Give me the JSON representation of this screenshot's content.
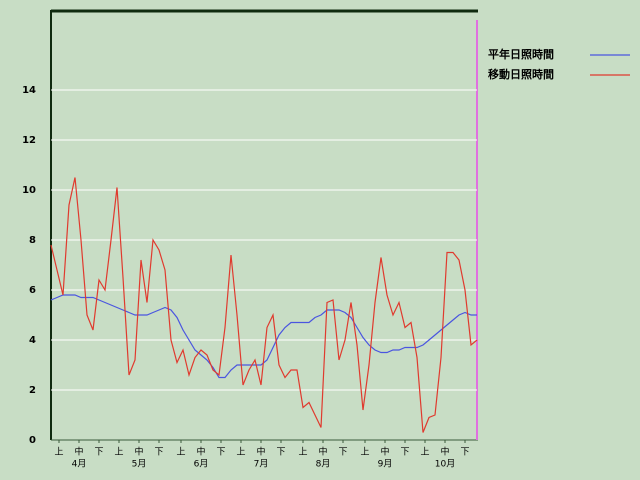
{
  "chart_data": {
    "type": "line",
    "x": [
      0,
      3,
      6,
      9,
      12,
      15,
      18,
      21,
      24,
      27,
      30,
      33,
      36,
      39,
      42,
      45,
      48,
      51,
      54,
      57,
      60,
      63,
      66,
      69,
      72,
      75,
      78,
      81,
      84,
      87,
      90,
      93,
      96,
      99,
      102,
      105,
      108,
      111,
      114,
      117,
      120,
      123,
      126,
      129,
      132,
      135,
      138,
      141,
      144,
      147,
      150,
      153,
      156,
      159,
      162,
      165,
      168,
      171,
      174,
      177,
      180,
      183,
      186,
      189,
      192,
      195,
      198,
      201,
      204,
      207,
      210,
      213
    ],
    "xlim": [
      0,
      213
    ],
    "ylim": [
      0,
      17.2
    ],
    "yticks": [
      0,
      2,
      4,
      6,
      8,
      10,
      12,
      14
    ],
    "grid": true,
    "xticks": [
      {
        "value": 4,
        "label": "上"
      },
      {
        "value": 14,
        "label": "中"
      },
      {
        "value": 24,
        "label": "下"
      },
      {
        "value": 34,
        "label": "上"
      },
      {
        "value": 44,
        "label": "中"
      },
      {
        "value": 54,
        "label": "下"
      },
      {
        "value": 65,
        "label": "上"
      },
      {
        "value": 75,
        "label": "中"
      },
      {
        "value": 85,
        "label": "下"
      },
      {
        "value": 95,
        "label": "上"
      },
      {
        "value": 105,
        "label": "中"
      },
      {
        "value": 115,
        "label": "下"
      },
      {
        "value": 126,
        "label": "上"
      },
      {
        "value": 136,
        "label": "中"
      },
      {
        "value": 146,
        "label": "下"
      },
      {
        "value": 157,
        "label": "上"
      },
      {
        "value": 167,
        "label": "中"
      },
      {
        "value": 177,
        "label": "下"
      },
      {
        "value": 187,
        "label": "上"
      },
      {
        "value": 197,
        "label": "中"
      },
      {
        "value": 207,
        "label": "下"
      }
    ],
    "month_labels": [
      {
        "value": 14,
        "label": "4月"
      },
      {
        "value": 44,
        "label": "5月"
      },
      {
        "value": 75,
        "label": "6月"
      },
      {
        "value": 105,
        "label": "7月"
      },
      {
        "value": 136,
        "label": "8月"
      },
      {
        "value": 167,
        "label": "9月"
      },
      {
        "value": 197,
        "label": "10月"
      }
    ],
    "series": [
      {
        "name": "平年日照時間",
        "color": "#4a55e0",
        "values": [
          5.6,
          5.7,
          5.8,
          5.8,
          5.8,
          5.7,
          5.7,
          5.7,
          5.6,
          5.5,
          5.4,
          5.3,
          5.2,
          5.1,
          5.0,
          5.0,
          5.0,
          5.1,
          5.2,
          5.3,
          5.2,
          4.9,
          4.4,
          4.0,
          3.6,
          3.4,
          3.2,
          2.9,
          2.5,
          2.5,
          2.8,
          3.0,
          3.0,
          3.0,
          3.0,
          3.0,
          3.2,
          3.7,
          4.2,
          4.5,
          4.7,
          4.7,
          4.7,
          4.7,
          4.9,
          5.0,
          5.2,
          5.2,
          5.2,
          5.1,
          4.9,
          4.5,
          4.1,
          3.8,
          3.6,
          3.5,
          3.5,
          3.6,
          3.6,
          3.7,
          3.7,
          3.7,
          3.8,
          4.0,
          4.2,
          4.4,
          4.6,
          4.8,
          5.0,
          5.1,
          5.0,
          5.0
        ]
      },
      {
        "name": "移動日照時間",
        "color": "#e03a2e",
        "values": [
          7.8,
          6.8,
          5.8,
          9.4,
          10.5,
          8.0,
          5.0,
          4.4,
          6.4,
          6.0,
          8.0,
          10.1,
          6.5,
          2.6,
          3.2,
          7.2,
          5.5,
          8.0,
          7.6,
          6.8,
          4.0,
          3.1,
          3.6,
          2.6,
          3.3,
          3.6,
          3.4,
          2.8,
          2.6,
          4.5,
          7.4,
          5.0,
          2.2,
          2.8,
          3.2,
          2.2,
          4.5,
          5.0,
          3.0,
          2.5,
          2.8,
          2.8,
          1.3,
          1.5,
          1.0,
          0.5,
          5.5,
          5.6,
          3.2,
          4.0,
          5.5,
          3.8,
          1.2,
          3.0,
          5.5,
          7.3,
          5.8,
          5.0,
          5.5,
          4.5,
          4.7,
          3.3,
          0.3,
          0.9,
          1.0,
          3.3,
          7.5,
          7.5,
          7.2,
          6.0,
          3.8,
          4.0
        ]
      }
    ]
  }
}
